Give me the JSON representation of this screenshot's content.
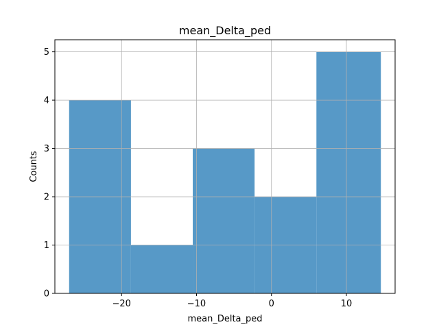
{
  "chart_data": {
    "type": "bar",
    "title": "mean_Delta_ped",
    "xlabel": "mean_Delta_ped",
    "ylabel": "Counts",
    "bins": [
      {
        "left": -27.0,
        "right": -18.75,
        "count": 4
      },
      {
        "left": -18.75,
        "right": -10.5,
        "count": 1
      },
      {
        "left": -10.5,
        "right": -2.25,
        "count": 3
      },
      {
        "left": -2.25,
        "right": 6.0,
        "count": 2
      },
      {
        "left": 6.0,
        "right": 14.6,
        "count": 5
      }
    ],
    "xlim": [
      -28.9,
      16.5
    ],
    "ylim": [
      0,
      5.25
    ],
    "xticks": [
      -20,
      -10,
      0,
      10
    ],
    "xtick_labels": [
      "−20",
      "−10",
      "0",
      "10"
    ],
    "yticks": [
      0,
      1,
      2,
      3,
      4,
      5
    ],
    "ytick_labels": [
      "0",
      "1",
      "2",
      "3",
      "4",
      "5"
    ],
    "grid": true,
    "bar_color": "#5799c7",
    "grid_color": "#b0b0b0"
  }
}
